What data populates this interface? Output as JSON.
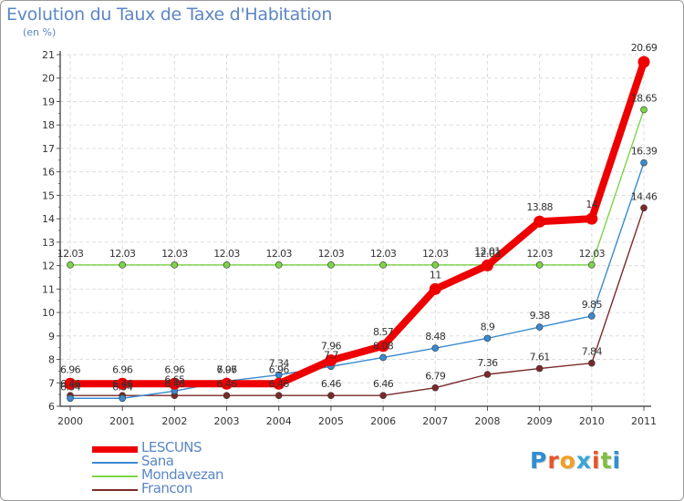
{
  "title": "Evolution du Taux de Taxe d'Habitation",
  "unit": "(en %)",
  "logo": "Proxiti",
  "logo_colors": [
    "#2f8fd3",
    "#e8542a",
    "#f0a020",
    "#3aa5d8",
    "#e8542a",
    "#7fbf3f",
    "#2f8fd3"
  ],
  "chart_data": {
    "type": "line",
    "x": [
      "2000",
      "2001",
      "2002",
      "2003",
      "2004",
      "2005",
      "2006",
      "2007",
      "2008",
      "2009",
      "2010",
      "2011"
    ],
    "ylim": [
      6,
      21
    ],
    "yticks": [
      6,
      7,
      8,
      9,
      10,
      11,
      12,
      13,
      14,
      15,
      16,
      17,
      18,
      19,
      20,
      21
    ],
    "grid": true,
    "legend_position": "bottom-left",
    "series": [
      {
        "name": "Francon",
        "color": "#7a2a2a",
        "values": [
          6.46,
          6.46,
          6.46,
          6.46,
          6.46,
          6.46,
          6.46,
          6.79,
          7.36,
          7.61,
          7.84,
          14.46
        ],
        "labels": [
          "6.46",
          "6.46",
          "6.46",
          "6.46",
          "6.46",
          "6.46",
          "6.46",
          "6.79",
          "7.36",
          "7.61",
          "7.84",
          "14.46"
        ]
      },
      {
        "name": "Sana",
        "color": "#3a8ad0",
        "values": [
          6.34,
          6.34,
          6.65,
          7.07,
          7.34,
          7.7,
          8.08,
          8.48,
          8.9,
          9.38,
          9.85,
          16.39
        ],
        "labels": [
          "6.34",
          "6.34",
          "6.65",
          "7.07",
          "7.34",
          "7.7",
          "8.08",
          "8.48",
          "8.9",
          "9.38",
          "9.85",
          "16.39"
        ]
      },
      {
        "name": "Mondavezan",
        "color": "#7dd44a",
        "values": [
          12.03,
          12.03,
          12.03,
          12.03,
          12.03,
          12.03,
          12.03,
          12.03,
          12.03,
          12.03,
          12.03,
          18.65
        ],
        "labels": [
          "12.03",
          "12.03",
          "12.03",
          "12.03",
          "12.03",
          "12.03",
          "12.03",
          "12.03",
          "12.03",
          "12.03",
          "12.03",
          "18.65"
        ]
      },
      {
        "name": "LESCUNS",
        "color": "#ee0000",
        "values": [
          6.96,
          6.96,
          6.96,
          6.96,
          6.96,
          7.96,
          8.57,
          11,
          12.01,
          13.88,
          14,
          20.69
        ],
        "labels": [
          "6.96",
          "6.96",
          "6.96",
          "6.96",
          "6.96",
          "7.96",
          "8.57",
          "11",
          "12.01",
          "13.88",
          "14",
          "20.69"
        ]
      }
    ],
    "legend": [
      {
        "name": "LESCUNS",
        "color": "#ee0000",
        "width": 7
      },
      {
        "name": "Sana",
        "color": "#3a8ad0",
        "width": 1.5
      },
      {
        "name": "Mondavezan",
        "color": "#7dd44a",
        "width": 1.5
      },
      {
        "name": "Francon",
        "color": "#7a2a2a",
        "width": 1.5
      }
    ]
  }
}
